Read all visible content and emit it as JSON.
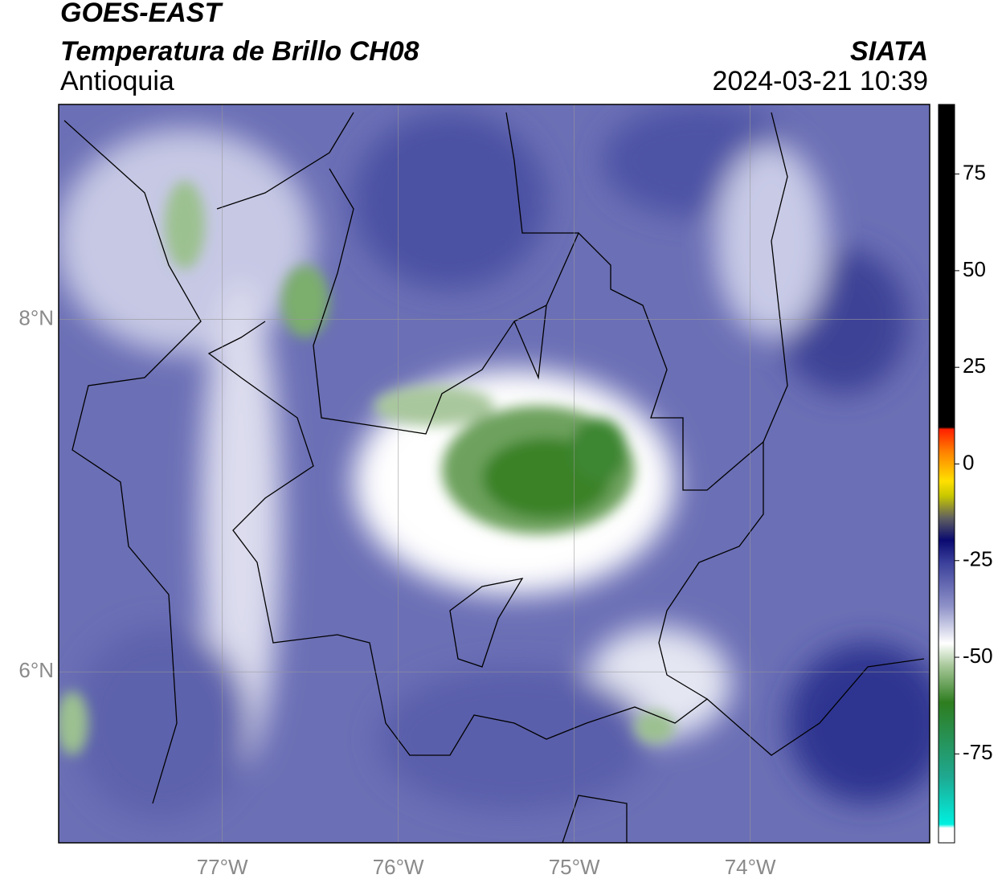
{
  "chart_data": {
    "type": "map",
    "title": "GOES-EAST",
    "subtitle": "Temperatura de Brillo CH08",
    "region": "Antioquia",
    "source": "SIATA",
    "timestamp": "2024-03-21 10:39",
    "xlim": [
      -77.93,
      -72.98
    ],
    "ylim": [
      5.03,
      9.22
    ],
    "xticks": [
      {
        "value": -77,
        "label": "77°W"
      },
      {
        "value": -76,
        "label": "76°W"
      },
      {
        "value": -75,
        "label": "75°W"
      },
      {
        "value": -74,
        "label": "74°W"
      }
    ],
    "yticks": [
      {
        "value": 6,
        "label": "6°N"
      },
      {
        "value": 8,
        "label": "8°N"
      }
    ],
    "grid": true,
    "colorbar": {
      "lim": [
        -98,
        93
      ],
      "ticks": [
        -75,
        -50,
        -25,
        0,
        25,
        50,
        75
      ]
    }
  }
}
